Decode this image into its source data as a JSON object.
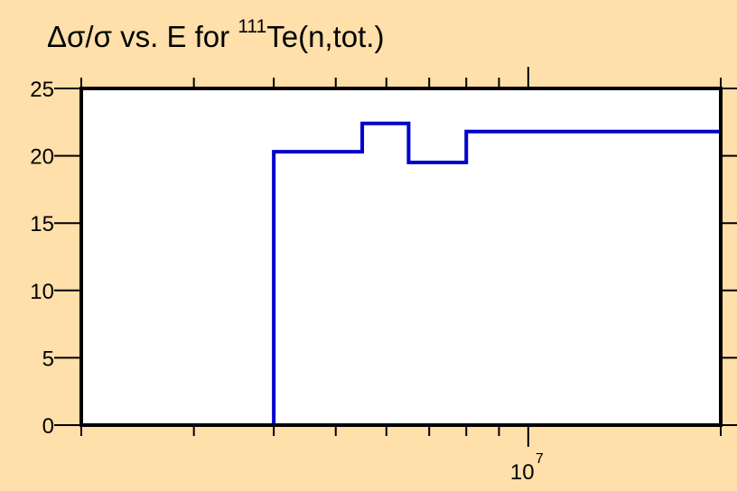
{
  "chart_data": {
    "type": "line",
    "step": true,
    "title": {
      "prefix": "Δσ/σ vs. E for ",
      "mass_number": "111",
      "suffix": "Te(n,tot.)"
    },
    "xlabel": "",
    "ylabel": "",
    "x_scale": "log",
    "xlim": [
      2000000,
      20000000
    ],
    "ylim": [
      0,
      25
    ],
    "y_ticks": [
      0,
      5,
      10,
      15,
      20,
      25
    ],
    "x_tick_label": {
      "base": "10",
      "exponent": "7",
      "value": 10000000
    },
    "x_minor_ticks": [
      2000000,
      3000000,
      4000000,
      5000000,
      6000000,
      7000000,
      8000000,
      9000000,
      20000000
    ],
    "series": [
      {
        "color": "#0000CC",
        "edges": [
          4000000,
          5500000,
          6500000,
          8000000,
          20000000
        ],
        "values": [
          20.3,
          22.4,
          19.5,
          21.8
        ]
      }
    ],
    "plot_background": "#FFFFFF",
    "page_background": "#FFDFAA"
  }
}
